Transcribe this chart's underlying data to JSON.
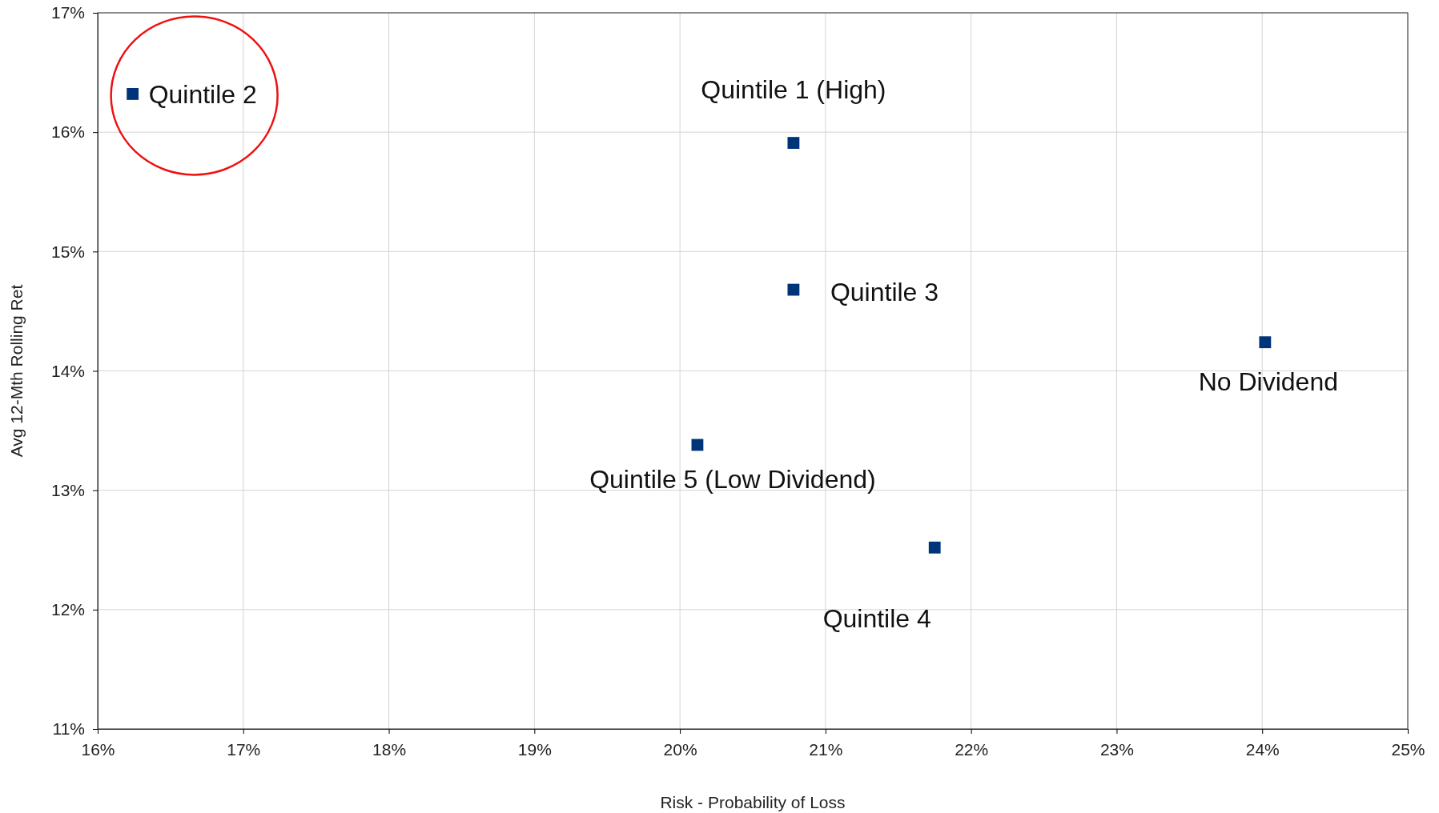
{
  "chart_data": {
    "type": "scatter",
    "xlabel": "Risk - Probability of Loss",
    "ylabel": "Avg 12-Mth Rolling Ret",
    "xlim": [
      16,
      25
    ],
    "xticks": [
      {
        "value": 16,
        "label": "16%"
      },
      {
        "value": 17,
        "label": "17%"
      },
      {
        "value": 18,
        "label": "18%"
      },
      {
        "value": 19,
        "label": "19%"
      },
      {
        "value": 20,
        "label": "20%"
      },
      {
        "value": 21,
        "label": "21%"
      },
      {
        "value": 22,
        "label": "22%"
      },
      {
        "value": 23,
        "label": "23%"
      },
      {
        "value": 24,
        "label": "24%"
      },
      {
        "value": 25,
        "label": "25%"
      }
    ],
    "ylim": [
      11,
      17
    ],
    "yticks": [
      {
        "value": 11,
        "label": "11%"
      },
      {
        "value": 12,
        "label": "12%"
      },
      {
        "value": 13,
        "label": "13%"
      },
      {
        "value": 14,
        "label": "14%"
      },
      {
        "value": 15,
        "label": "15%"
      },
      {
        "value": 16,
        "label": "16%"
      },
      {
        "value": 17,
        "label": "17%"
      }
    ],
    "grid": true,
    "marker": "square",
    "series": [
      {
        "name": "Quintile 1 (High)",
        "color": "#003478",
        "x": [
          20.78
        ],
        "values": [
          15.91
        ]
      },
      {
        "name": "Quintile 2",
        "color": "#003478",
        "x": [
          16.24
        ],
        "values": [
          16.32
        ]
      },
      {
        "name": "Quintile 3",
        "color": "#003478",
        "x": [
          20.78
        ],
        "values": [
          14.68
        ]
      },
      {
        "name": "Quintile 4",
        "color": "#003478",
        "x": [
          21.75
        ],
        "values": [
          12.52
        ]
      },
      {
        "name": "Quintile 5 (Low Dividend)",
        "color": "#003478",
        "x": [
          20.12
        ],
        "values": [
          13.38
        ]
      },
      {
        "name": "No Dividend",
        "color": "#003478",
        "x": [
          24.02
        ],
        "values": [
          14.24
        ]
      }
    ]
  }
}
